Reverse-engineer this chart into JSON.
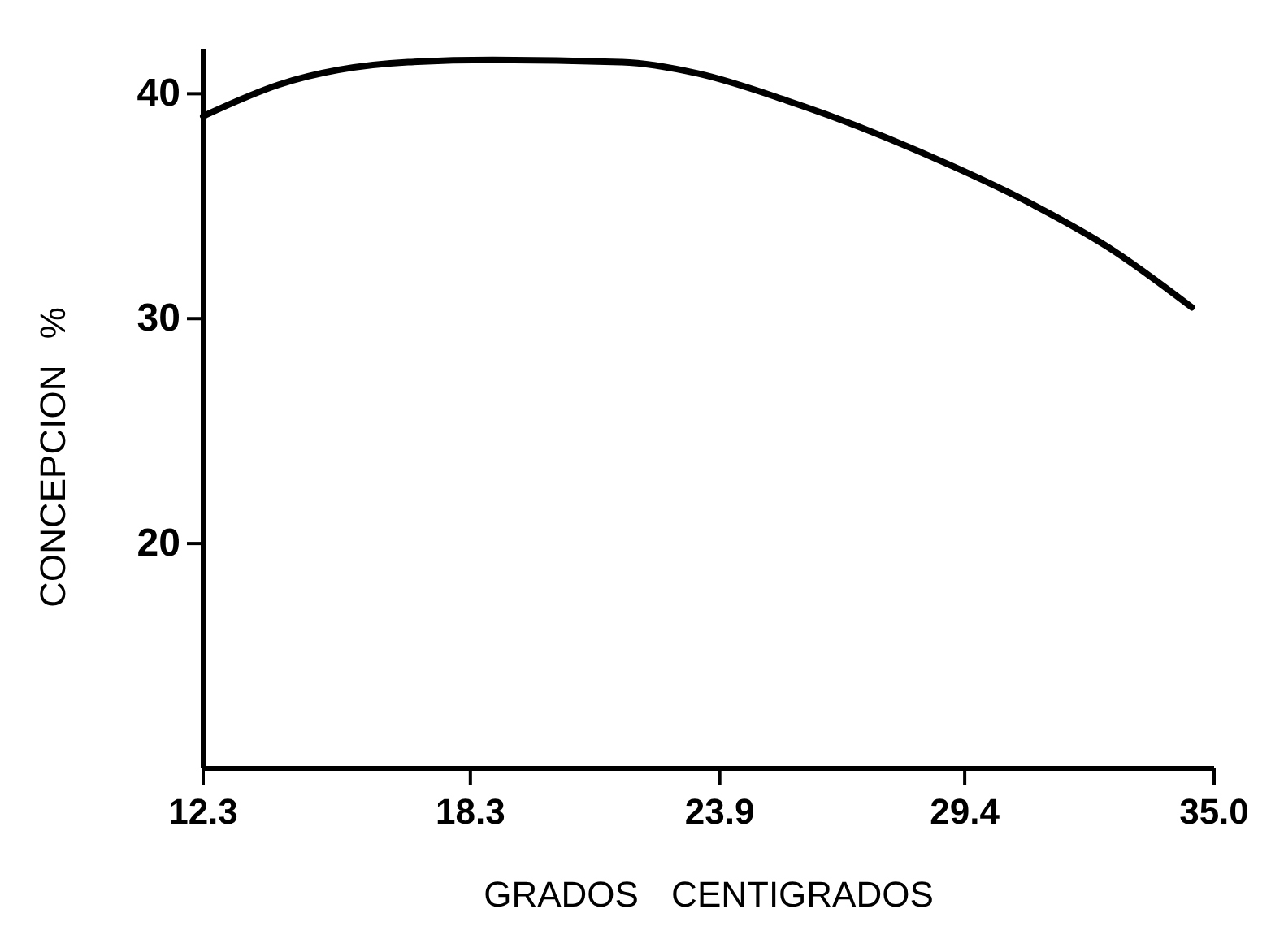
{
  "chart_data": {
    "type": "line",
    "xlabel": "GRADOS CENTIGRADOS",
    "ylabel": "CONCEPCION %",
    "series": [
      {
        "color": "#000000",
        "x": [
          12.3,
          14.0,
          16.9,
          18.8,
          21.7,
          23.4,
          25.4,
          29.1,
          30.9,
          32.6,
          34.5
        ],
        "values": [
          39.0,
          40.4,
          41.4,
          41.5,
          41.4,
          40.9,
          39.7,
          36.8,
          35.1,
          33.2,
          30.5
        ]
      }
    ],
    "xlim": [
      12.3,
      35.0
    ],
    "xticks": [
      {
        "value": 12.3,
        "label": "12.3"
      },
      {
        "value": 18.3,
        "label": "18.3"
      },
      {
        "value": 23.9,
        "label": "23.9"
      },
      {
        "value": 29.4,
        "label": "29.4"
      },
      {
        "value": 35.0,
        "label": "35.0"
      }
    ],
    "ylim": [
      10,
      42
    ],
    "yticks": [
      20,
      30,
      40
    ],
    "grid": false,
    "marker": "none",
    "line_style": "solid"
  }
}
